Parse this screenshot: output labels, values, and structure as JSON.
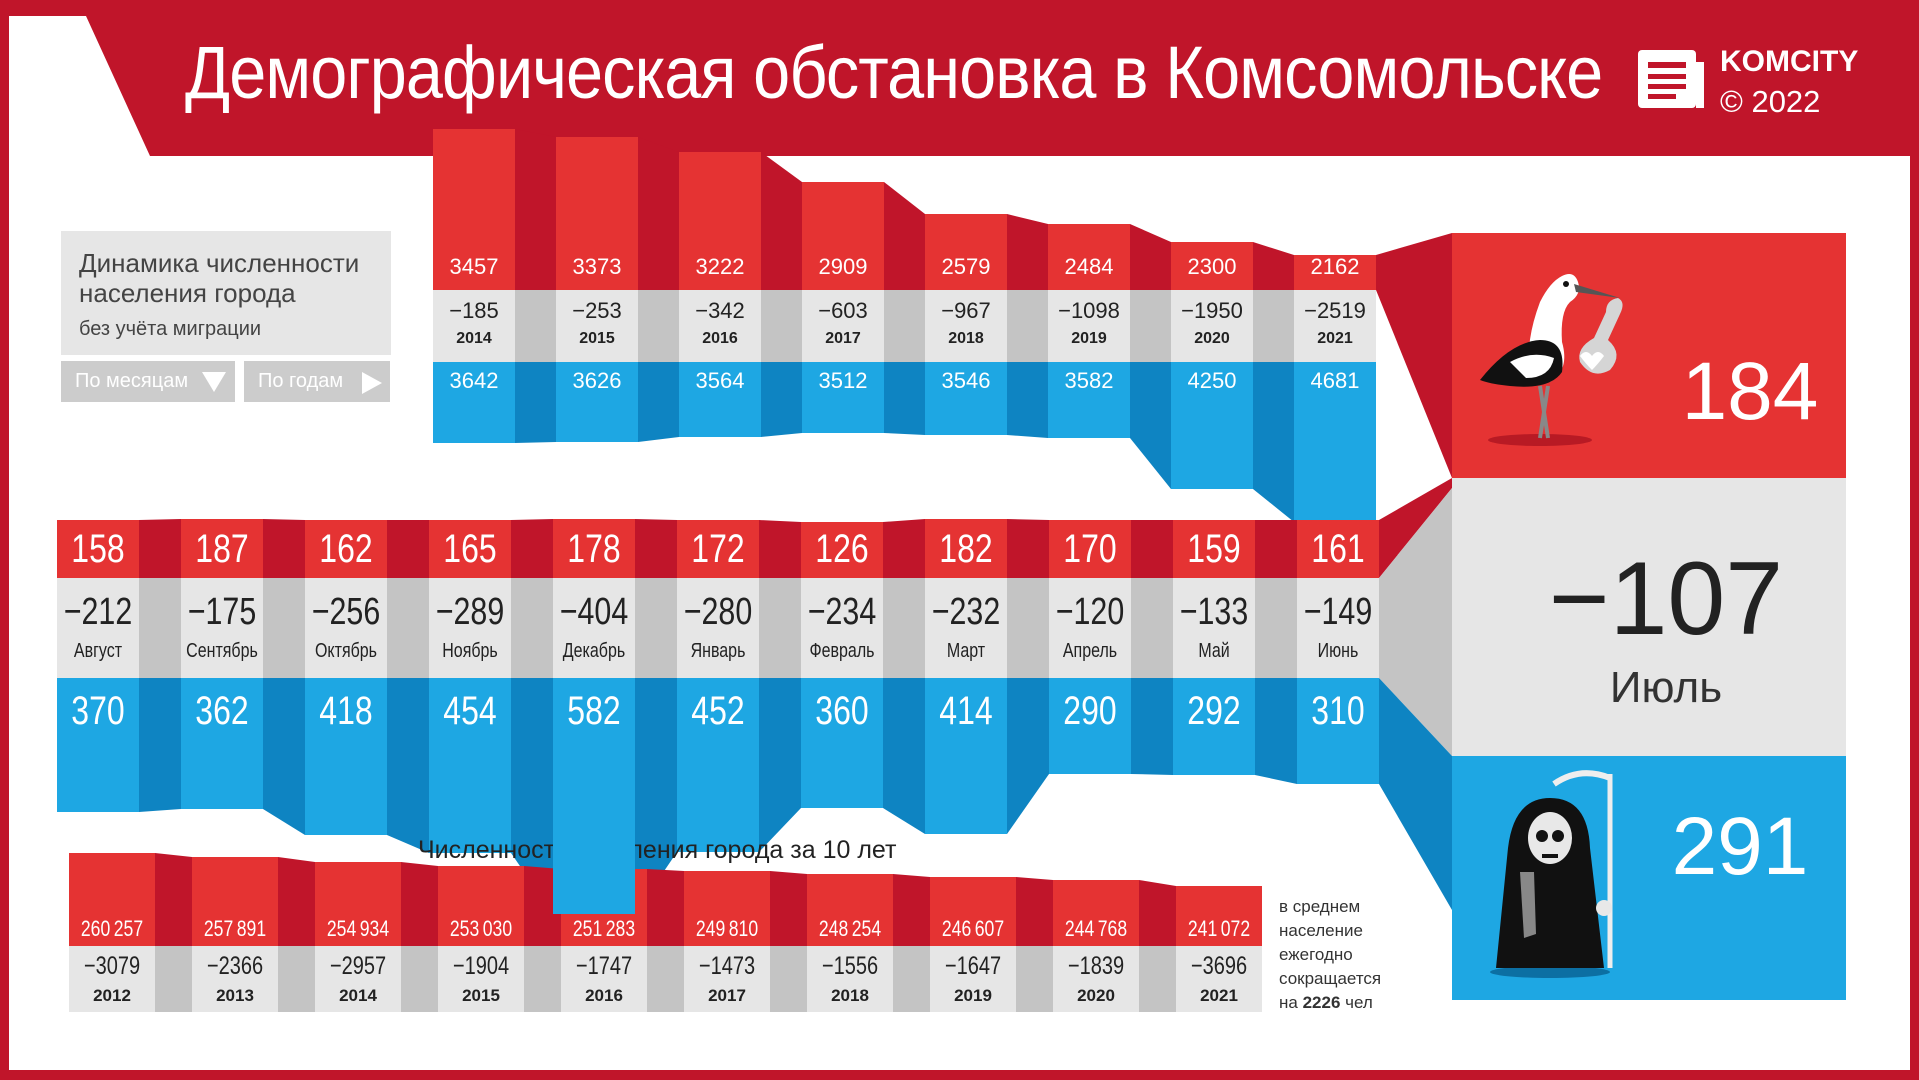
{
  "header": {
    "title": "Демографическая обстановка в Комсомольске",
    "logo_text": "KOMCITY",
    "logo_copyright": "© 2022"
  },
  "info": {
    "line1": "Динамика численности",
    "line2": "населения города",
    "line3": "без учёта миграции",
    "btn_months": "По месяцам",
    "btn_years": "По годам"
  },
  "decade_title": "Численность населения города за 10 лет",
  "note": {
    "line1": "в среднем",
    "line2": "население",
    "line3": "ежегодно",
    "line4": "сокращается",
    "line5_pre": "на",
    "line5_value": "2226",
    "line5_post": "чел"
  },
  "current": {
    "births": "184",
    "balance": "−107",
    "month": "Июль",
    "deaths": "291"
  },
  "colors": {
    "red": "#e53333",
    "dark_red": "#c0152a",
    "gray": "#e6e6e6",
    "dark_gray": "#c4c4c4",
    "blue": "#1ea7e3",
    "dark_blue": "#0e84c2"
  },
  "icons": {
    "births": "stork-icon",
    "deaths": "grim-reaper-icon",
    "logo": "newspaper-icon"
  },
  "chart_data": [
    {
      "type": "table",
      "name": "yearly",
      "categories": [
        "2014",
        "2015",
        "2016",
        "2017",
        "2018",
        "2019",
        "2020",
        "2021"
      ],
      "series": [
        {
          "name": "births",
          "values": [
            3457,
            3373,
            3222,
            2909,
            2579,
            2484,
            2300,
            2162
          ]
        },
        {
          "name": "balance",
          "values": [
            -185,
            -253,
            -342,
            -603,
            -967,
            -1098,
            -1950,
            -2519
          ]
        },
        {
          "name": "deaths",
          "values": [
            3642,
            3626,
            3564,
            3512,
            3546,
            3582,
            4250,
            4681
          ]
        }
      ]
    },
    {
      "type": "table",
      "name": "monthly",
      "categories": [
        "Август",
        "Сентябрь",
        "Октябрь",
        "Ноябрь",
        "Декабрь",
        "Январь",
        "Февраль",
        "Март",
        "Апрель",
        "Май",
        "Июнь"
      ],
      "series": [
        {
          "name": "births",
          "values": [
            158,
            187,
            162,
            165,
            178,
            172,
            126,
            182,
            170,
            159,
            161
          ]
        },
        {
          "name": "balance",
          "values": [
            -212,
            -175,
            -256,
            -289,
            -404,
            -280,
            -234,
            -232,
            -120,
            -133,
            -149
          ]
        },
        {
          "name": "deaths",
          "values": [
            370,
            362,
            418,
            454,
            582,
            452,
            360,
            414,
            290,
            292,
            310
          ]
        }
      ]
    },
    {
      "type": "table",
      "name": "decade",
      "categories": [
        "2012",
        "2013",
        "2014",
        "2015",
        "2016",
        "2017",
        "2018",
        "2019",
        "2020",
        "2021"
      ],
      "series": [
        {
          "name": "population",
          "values": [
            260257,
            257891,
            254934,
            253030,
            251283,
            249810,
            248254,
            246607,
            244768,
            241072
          ]
        },
        {
          "name": "change",
          "values": [
            -3079,
            -2366,
            -2957,
            -1904,
            -1747,
            -1473,
            -1556,
            -1647,
            -1839,
            -3696
          ]
        }
      ]
    }
  ]
}
